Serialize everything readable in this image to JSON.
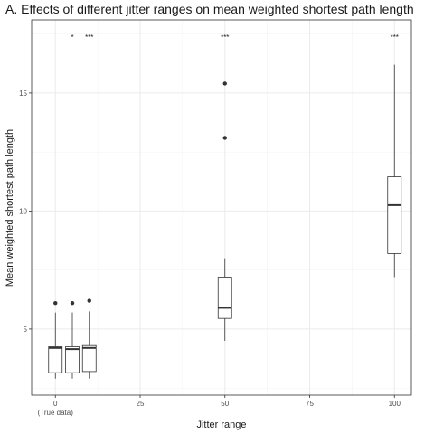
{
  "chart_data": {
    "type": "boxplot",
    "title": "A. Effects of different jitter ranges on mean weighted shortest path length",
    "xlabel": "Jitter range",
    "ylabel": "Mean weighted shortest path length",
    "xlim": [
      -7,
      105
    ],
    "ylim": [
      2.2,
      18.1
    ],
    "x_ticks": [
      0,
      25,
      50,
      75,
      100
    ],
    "x_tick_sublabels": [
      {
        "x": 0,
        "label": "(True data)"
      }
    ],
    "y_ticks": [
      5,
      10,
      15
    ],
    "grid": true,
    "boxes": [
      {
        "x": 0,
        "min": 2.9,
        "q1": 3.15,
        "median": 4.2,
        "q3": 4.25,
        "max": 5.7,
        "outliers": [
          6.1
        ],
        "significance": ""
      },
      {
        "x": 5,
        "min": 2.9,
        "q1": 3.15,
        "median": 4.15,
        "q3": 4.25,
        "max": 5.7,
        "outliers": [
          6.1
        ],
        "significance": "*"
      },
      {
        "x": 10,
        "min": 2.9,
        "q1": 3.2,
        "median": 4.2,
        "q3": 4.3,
        "max": 5.75,
        "outliers": [
          6.2
        ],
        "significance": "***"
      },
      {
        "x": 50,
        "min": 4.5,
        "q1": 5.45,
        "median": 5.9,
        "q3": 7.2,
        "max": 8.0,
        "outliers": [
          13.1,
          15.4
        ],
        "significance": "***"
      },
      {
        "x": 100,
        "min": 7.2,
        "q1": 8.2,
        "median": 10.25,
        "q3": 11.45,
        "max": 16.2,
        "outliers": [],
        "significance": "***"
      }
    ]
  }
}
